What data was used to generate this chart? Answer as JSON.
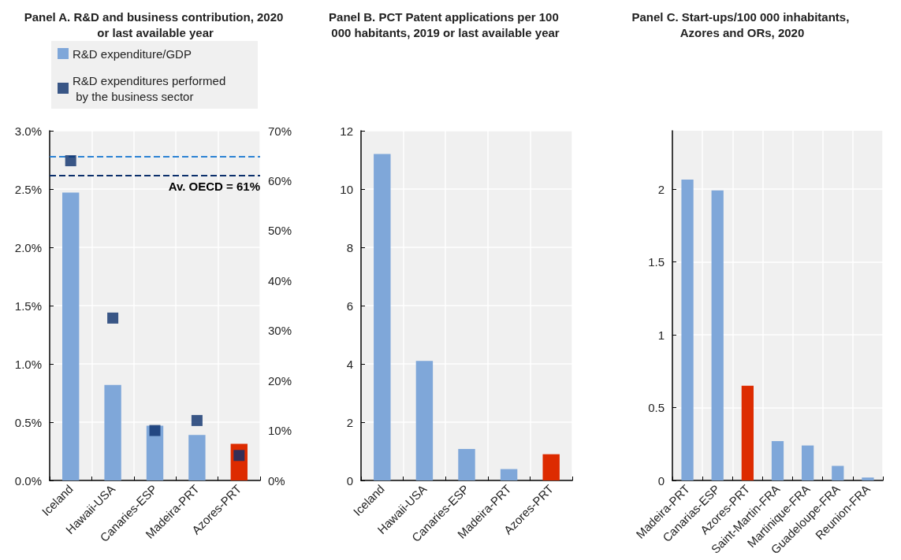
{
  "chart_data": [
    {
      "type": "bar",
      "title": "Panel A. R&D and business contribution, 2020 or last available year",
      "categories": [
        "Iceland",
        "Hawaii-USA",
        "Canaries-ESP",
        "Madeira-PRT",
        "Azores-PRT"
      ],
      "series": [
        {
          "name": "R&D expenditure/GDP",
          "color": "#7fa7d9",
          "colors": [
            "#7fa7d9",
            "#7fa7d9",
            "#7fa7d9",
            "#7fa7d9",
            "#dd2b00"
          ],
          "values": [
            2.47,
            0.82,
            0.47,
            0.39,
            0.315
          ]
        },
        {
          "name": "R&D expenditures performed by the business sector",
          "type": "scatter",
          "axis": "y2",
          "color": "#0b2f6b",
          "values": [
            64,
            32.5,
            10,
            12,
            5
          ]
        }
      ],
      "marker": "square",
      "ylim": [
        0,
        3
      ],
      "yticks": [
        {
          "value": 0,
          "label": "0.0%"
        },
        {
          "value": 0.5,
          "label": "0.5%"
        },
        {
          "value": 1,
          "label": "1.0%"
        },
        {
          "value": 1.5,
          "label": "1.5%"
        },
        {
          "value": 2,
          "label": "2.0%"
        },
        {
          "value": 2.5,
          "label": "2.5%"
        },
        {
          "value": 3,
          "label": "3.0%"
        }
      ],
      "y2lim": [
        0,
        70
      ],
      "y2ticks": [
        {
          "value": 0,
          "label": "0%"
        },
        {
          "value": 10,
          "label": "10%"
        },
        {
          "value": 20,
          "label": "20%"
        },
        {
          "value": 30,
          "label": "30%"
        },
        {
          "value": 40,
          "label": "40%"
        },
        {
          "value": 50,
          "label": "50%"
        },
        {
          "value": 60,
          "label": "60%"
        },
        {
          "value": 70,
          "label": "70%"
        }
      ],
      "ref_lines": [
        {
          "axis": "y",
          "value": 2.78,
          "color": "#2b82d4",
          "line_style": "dashed"
        },
        {
          "axis": "y2",
          "value": 61,
          "label": "Av. OECD = 61%",
          "color": "#0b2f6b",
          "line_style": "dashed"
        }
      ],
      "grid": true,
      "legend": "top"
    },
    {
      "type": "bar",
      "title": "Panel B. PCT Patent applications per 100 000 habitants, 2019 or last available year",
      "categories": [
        "Iceland",
        "Hawaii-USA",
        "Canaries-ESP",
        "Madeira-PRT",
        "Azores-PRT"
      ],
      "values": [
        11.2,
        4.1,
        1.08,
        0.39,
        0.9
      ],
      "colors": [
        "#7fa7d9",
        "#7fa7d9",
        "#7fa7d9",
        "#7fa7d9",
        "#dd2b00"
      ],
      "ylim": [
        0,
        12
      ],
      "yticks": [
        0,
        2,
        4,
        6,
        8,
        10,
        12
      ],
      "grid": true
    },
    {
      "type": "bar",
      "title": "Panel C. Start-ups/100 000 inhabitants, Azores and ORs, 2020",
      "categories": [
        "Madeira-PRT",
        "Canarias-ESP",
        "Azores-PRT",
        "Saint-Martin-FRA",
        "Martinique-FRA",
        "Guadeloupe-FRA",
        "Reunion-FRA"
      ],
      "values": [
        2.065,
        1.99,
        0.65,
        0.27,
        0.24,
        0.1,
        0.02
      ],
      "colors": [
        "#7fa7d9",
        "#7fa7d9",
        "#dd2b00",
        "#7fa7d9",
        "#7fa7d9",
        "#7fa7d9",
        "#7fa7d9"
      ],
      "ylim": [
        0,
        2.4
      ],
      "yticks": [
        0,
        0.5,
        1,
        1.5,
        2
      ],
      "grid": true
    }
  ]
}
